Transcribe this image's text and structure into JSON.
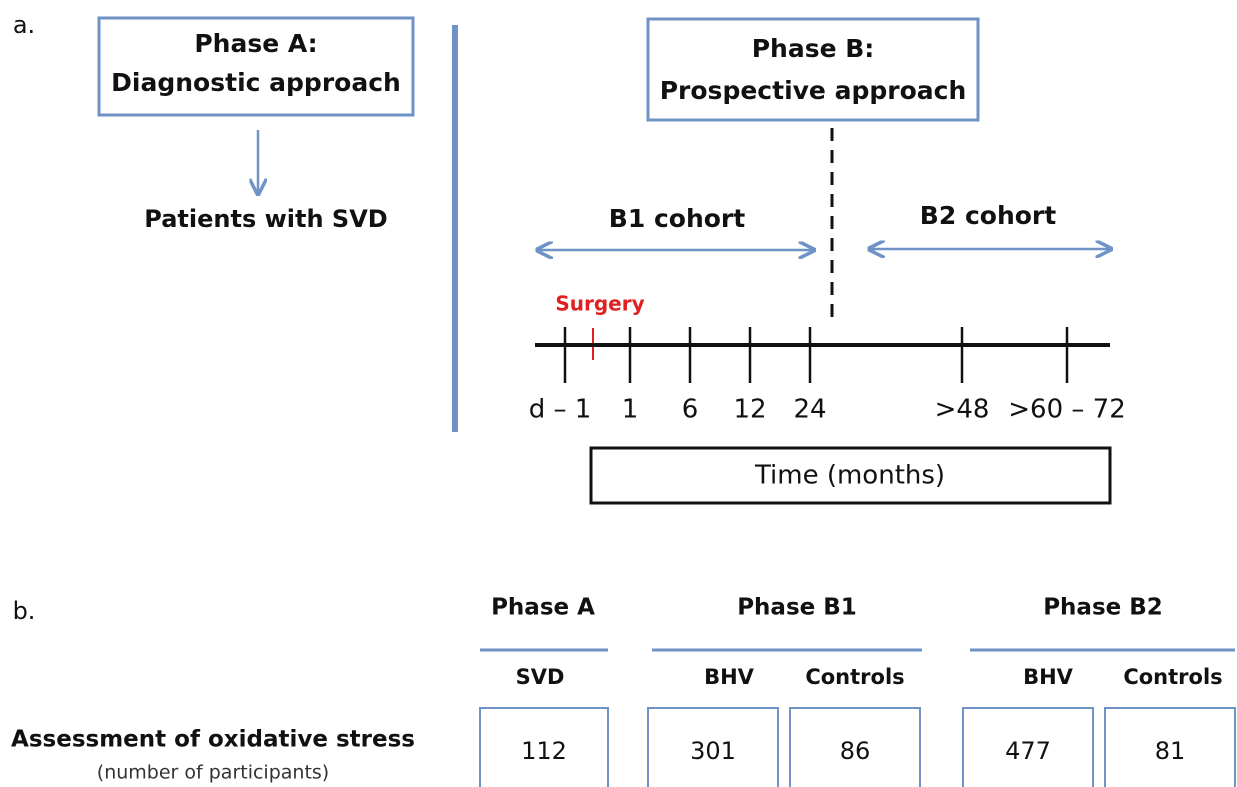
{
  "panel_a": {
    "label": "a.",
    "phase_a": {
      "title": "Phase A:",
      "subtitle": "Diagnostic approach",
      "result": "Patients with SVD"
    },
    "phase_b": {
      "title": "Phase B:",
      "subtitle": "Prospective approach"
    },
    "cohorts": [
      "B1 cohort",
      "B2 cohort"
    ],
    "event": "Surgery",
    "timeline_ticks": [
      "d – 1",
      "1",
      "6",
      "12",
      "24",
      ">48",
      ">60 – 72"
    ],
    "axis_label": "Time (months)"
  },
  "panel_b": {
    "label": "b.",
    "groups": [
      {
        "name": "Phase A",
        "columns": [
          {
            "name": "SVD",
            "value": "112"
          }
        ]
      },
      {
        "name": "Phase B1",
        "columns": [
          {
            "name": "BHV",
            "value": "301"
          },
          {
            "name": "Controls",
            "value": "86"
          }
        ]
      },
      {
        "name": "Phase B2",
        "columns": [
          {
            "name": "BHV",
            "value": "477"
          },
          {
            "name": "Controls",
            "value": "81"
          }
        ]
      }
    ],
    "row_label": "Assessment of oxidative stress",
    "row_note": "(number of participants)"
  }
}
